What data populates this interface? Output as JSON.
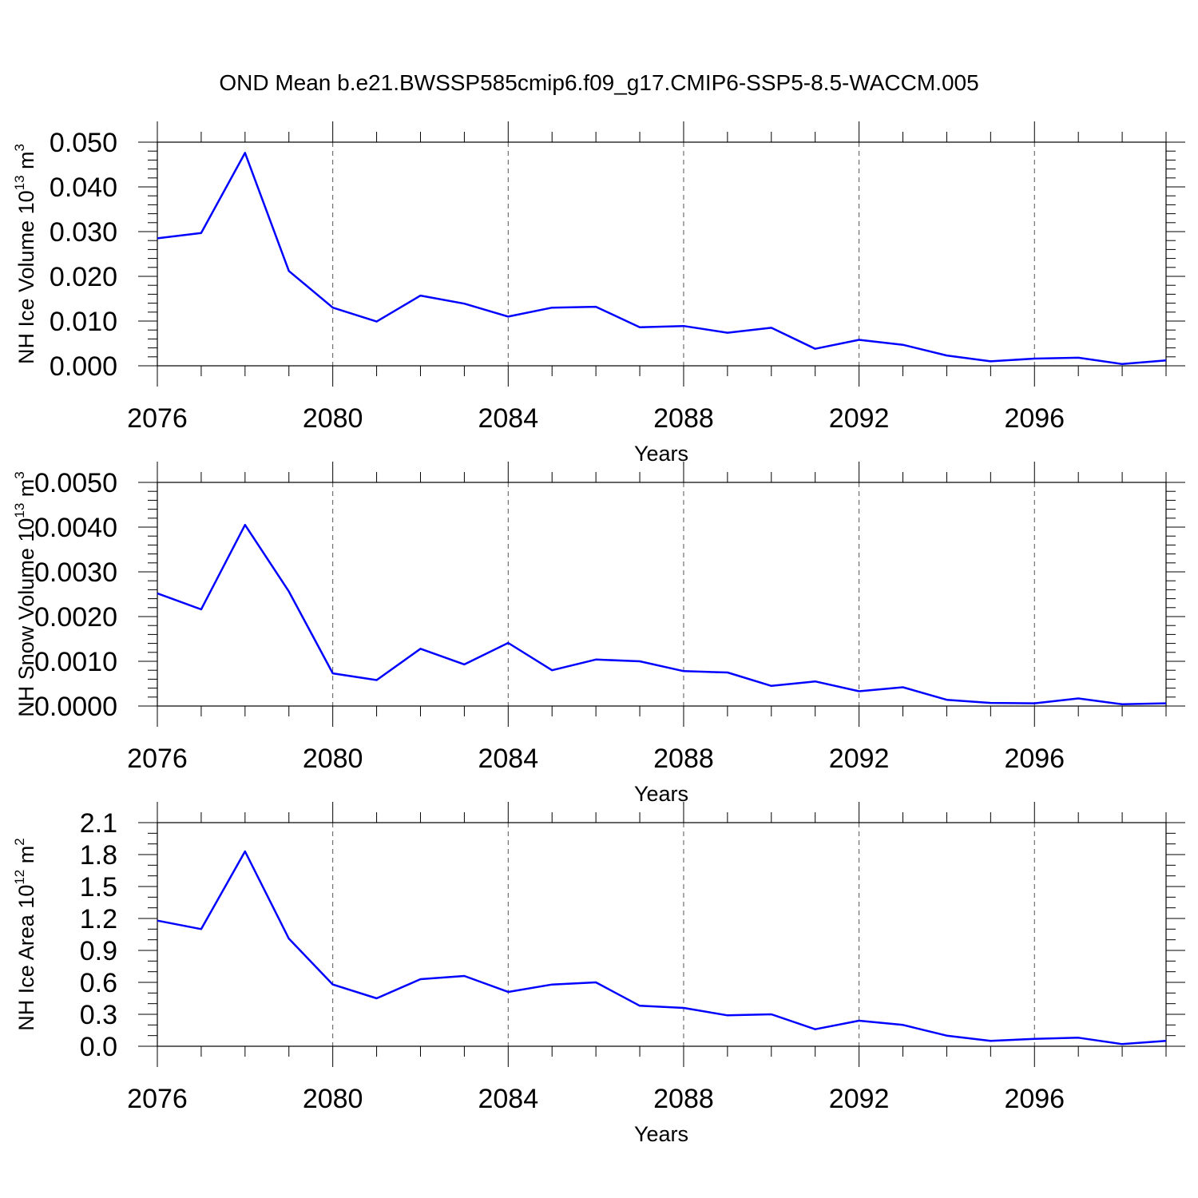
{
  "title": "OND Mean b.e21.BWSSP585cmip6.f09_g17.CMIP6-SSP5-8.5-WACCM.005",
  "line_color": "#0000ff",
  "chart_data": [
    {
      "type": "line",
      "name": "ice-volume",
      "ylabel": "NH Ice Volume 10",
      "ylabel_exp": "13",
      "ylabel_unit": " m",
      "ylabel_unit_exp": "3",
      "xlabel": "Years",
      "xlim": [
        2076,
        2099
      ],
      "ylim": [
        0,
        0.05
      ],
      "yticks": [
        0,
        0.01,
        0.02,
        0.03,
        0.04,
        0.05
      ],
      "ytick_labels": [
        "0.000",
        "0.010",
        "0.020",
        "0.030",
        "0.040",
        "0.050"
      ],
      "yminor_step": 0.002,
      "xticks": [
        2076,
        2080,
        2084,
        2088,
        2092,
        2096
      ],
      "xtick_labels": [
        "2076",
        "2080",
        "2084",
        "2088",
        "2092",
        "2096"
      ],
      "x": [
        2076,
        2077,
        2078,
        2079,
        2080,
        2081,
        2082,
        2083,
        2084,
        2085,
        2086,
        2087,
        2088,
        2089,
        2090,
        2091,
        2092,
        2093,
        2094,
        2095,
        2096,
        2097,
        2098,
        2099
      ],
      "values": [
        0.0285,
        0.0297,
        0.0476,
        0.0212,
        0.013,
        0.0099,
        0.0157,
        0.0139,
        0.011,
        0.013,
        0.0132,
        0.0086,
        0.0089,
        0.0074,
        0.0085,
        0.0038,
        0.0058,
        0.0047,
        0.0023,
        0.001,
        0.0016,
        0.0018,
        0.0004,
        0.0012
      ]
    },
    {
      "type": "line",
      "name": "snow-volume",
      "ylabel": "NH Snow Volume 10",
      "ylabel_exp": "13",
      "ylabel_unit": " m",
      "ylabel_unit_exp": "3",
      "xlabel": "Years",
      "xlim": [
        2076,
        2099
      ],
      "ylim": [
        0,
        0.005
      ],
      "yticks": [
        0,
        0.001,
        0.002,
        0.003,
        0.004,
        0.005
      ],
      "ytick_labels": [
        "0.0000",
        "0.0010",
        "0.0020",
        "0.0030",
        "0.0040",
        "0.0050"
      ],
      "yminor_step": 0.0002,
      "xticks": [
        2076,
        2080,
        2084,
        2088,
        2092,
        2096
      ],
      "xtick_labels": [
        "2076",
        "2080",
        "2084",
        "2088",
        "2092",
        "2096"
      ],
      "x": [
        2076,
        2077,
        2078,
        2079,
        2080,
        2081,
        2082,
        2083,
        2084,
        2085,
        2086,
        2087,
        2088,
        2089,
        2090,
        2091,
        2092,
        2093,
        2094,
        2095,
        2096,
        2097,
        2098,
        2099
      ],
      "values": [
        0.00252,
        0.00216,
        0.00405,
        0.00256,
        0.00073,
        0.00058,
        0.00128,
        0.00093,
        0.00141,
        0.0008,
        0.00104,
        0.001,
        0.00078,
        0.00075,
        0.00045,
        0.00055,
        0.00033,
        0.00042,
        0.00014,
        7e-05,
        6e-05,
        0.00017,
        4e-05,
        6e-05
      ]
    },
    {
      "type": "line",
      "name": "ice-area",
      "ylabel": "NH Ice Area 10",
      "ylabel_exp": "12",
      "ylabel_unit": " m",
      "ylabel_unit_exp": "2",
      "xlabel": "Years",
      "xlim": [
        2076,
        2099
      ],
      "ylim": [
        0,
        2.1
      ],
      "yticks": [
        0,
        0.3,
        0.6,
        0.9,
        1.2,
        1.5,
        1.8,
        2.1
      ],
      "ytick_labels": [
        "0.0",
        "0.3",
        "0.6",
        "0.9",
        "1.2",
        "1.5",
        "1.8",
        "2.1"
      ],
      "yminor_step": 0.1,
      "xticks": [
        2076,
        2080,
        2084,
        2088,
        2092,
        2096
      ],
      "xtick_labels": [
        "2076",
        "2080",
        "2084",
        "2088",
        "2092",
        "2096"
      ],
      "x": [
        2076,
        2077,
        2078,
        2079,
        2080,
        2081,
        2082,
        2083,
        2084,
        2085,
        2086,
        2087,
        2088,
        2089,
        2090,
        2091,
        2092,
        2093,
        2094,
        2095,
        2096,
        2097,
        2098,
        2099
      ],
      "values": [
        1.18,
        1.1,
        1.83,
        1.01,
        0.58,
        0.45,
        0.63,
        0.66,
        0.51,
        0.58,
        0.6,
        0.38,
        0.36,
        0.29,
        0.3,
        0.16,
        0.24,
        0.2,
        0.1,
        0.05,
        0.07,
        0.08,
        0.02,
        0.05
      ]
    }
  ]
}
